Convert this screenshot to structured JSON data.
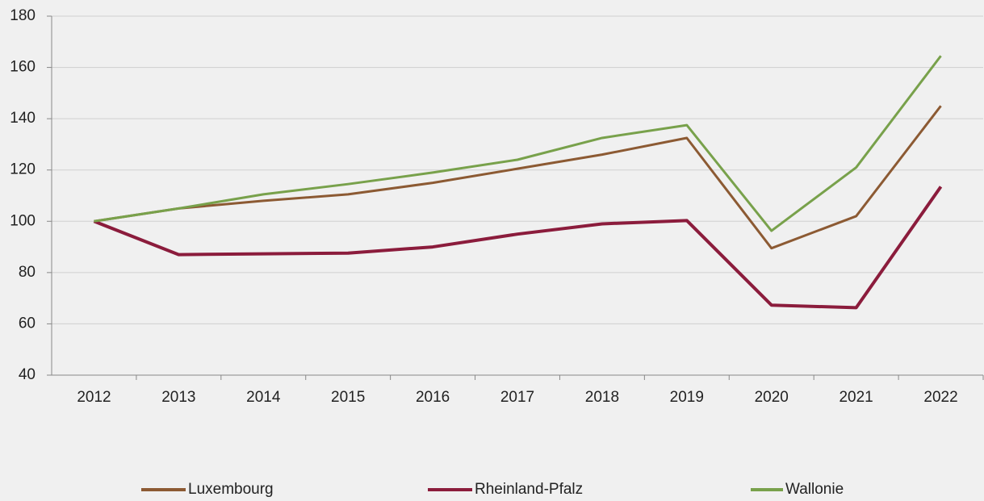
{
  "chart_data": {
    "type": "line",
    "categories": [
      "2012",
      "2013",
      "2014",
      "2015",
      "2016",
      "2017",
      "2018",
      "2019",
      "2020",
      "2021",
      "2022"
    ],
    "series": [
      {
        "name": "Luxembourg",
        "color": "#8c5a33",
        "values": [
          100,
          105,
          108,
          110.5,
          115,
          120.5,
          126,
          132.5,
          89.5,
          102,
          145
        ]
      },
      {
        "name": "Rheinland-Pfalz",
        "color": "#8b1c3c",
        "values": [
          100,
          87,
          87.3,
          87.6,
          90,
          95,
          99,
          100.3,
          67.3,
          66.3,
          113.5
        ]
      },
      {
        "name": "Wallonie",
        "color": "#78a14b",
        "values": [
          100,
          105,
          110.5,
          114.5,
          119,
          124,
          132.5,
          137.5,
          96.3,
          121,
          164.5
        ]
      }
    ],
    "ylim": [
      40,
      180
    ],
    "yticks": [
      40,
      60,
      80,
      100,
      120,
      140,
      160,
      180
    ],
    "grid": true,
    "legend": "bottom"
  }
}
